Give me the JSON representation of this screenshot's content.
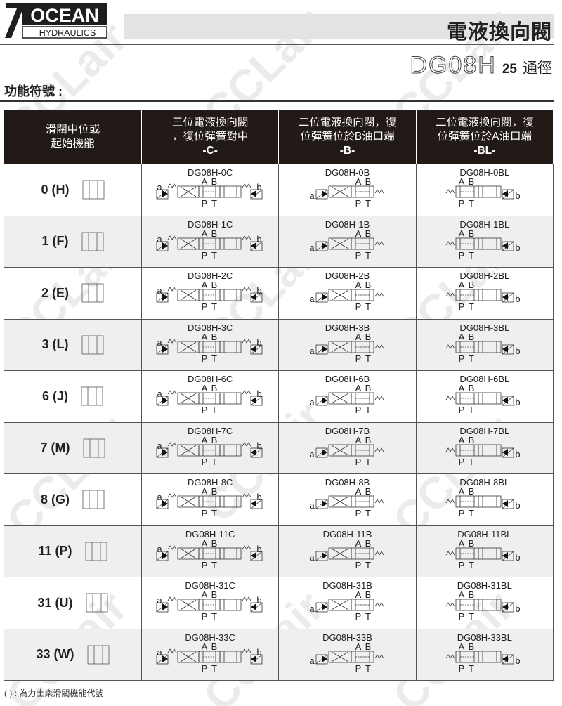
{
  "brand": {
    "logo_text": "OCEAN",
    "logo_sub": "HYDRAULICS"
  },
  "header": {
    "title": "電液換向閥",
    "model": "DG08H",
    "size": "25",
    "size_unit": "通徑"
  },
  "section_title": "功能符號 :",
  "table": {
    "headers": [
      {
        "line1": "滑閥中位或",
        "line2": "起始機能",
        "line3": ""
      },
      {
        "line1": "三位電液換向閥",
        "line2": "，復位彈簧對中",
        "line3": "-C-"
      },
      {
        "line1": "二位電液換向閥，復",
        "line2": "位彈簧位於B油口端",
        "line3": "-B-"
      },
      {
        "line1": "二位電液換向閥，復",
        "line2": "位彈簧位於A油口端",
        "line3": "-BL-"
      }
    ],
    "port_labels": {
      "a": "a",
      "b": "b",
      "A": "A",
      "B": "B",
      "P": "P",
      "T": "T"
    },
    "rows": [
      {
        "function": "0 (H)",
        "c": "DG08H-0C",
        "b": "DG08H-0B",
        "bl": "DG08H-0BL",
        "shaded": false
      },
      {
        "function": "1 (F)",
        "c": "DG08H-1C",
        "b": "DG08H-1B",
        "bl": "DG08H-1BL",
        "shaded": true
      },
      {
        "function": "2 (E)",
        "c": "DG08H-2C",
        "b": "DG08H-2B",
        "bl": "DG08H-2BL",
        "shaded": false
      },
      {
        "function": "3 (L)",
        "c": "DG08H-3C",
        "b": "DG08H-3B",
        "bl": "DG08H-3BL",
        "shaded": true
      },
      {
        "function": "6 (J)",
        "c": "DG08H-6C",
        "b": "DG08H-6B",
        "bl": "DG08H-6BL",
        "shaded": false
      },
      {
        "function": "7 (M)",
        "c": "DG08H-7C",
        "b": "DG08H-7B",
        "bl": "DG08H-7BL",
        "shaded": true
      },
      {
        "function": "8 (G)",
        "c": "DG08H-8C",
        "b": "DG08H-8B",
        "bl": "DG08H-8BL",
        "shaded": false
      },
      {
        "function": "11 (P)",
        "c": "DG08H-11C",
        "b": "DG08H-11B",
        "bl": "DG08H-11BL",
        "shaded": true
      },
      {
        "function": "31 (U)",
        "c": "DG08H-31C",
        "b": "DG08H-31B",
        "bl": "DG08H-31BL",
        "shaded": false
      },
      {
        "function": "33 (W)",
        "c": "DG08H-33C",
        "b": "DG08H-33B",
        "bl": "DG08H-33BL",
        "shaded": true
      }
    ]
  },
  "footnote": "( ) : 為力士樂滑閥機能代號",
  "watermark": "CCLair",
  "colors": {
    "header_bg": "#221a17",
    "shaded_row": "#efefef",
    "title_bar": "#e3e3e3"
  }
}
